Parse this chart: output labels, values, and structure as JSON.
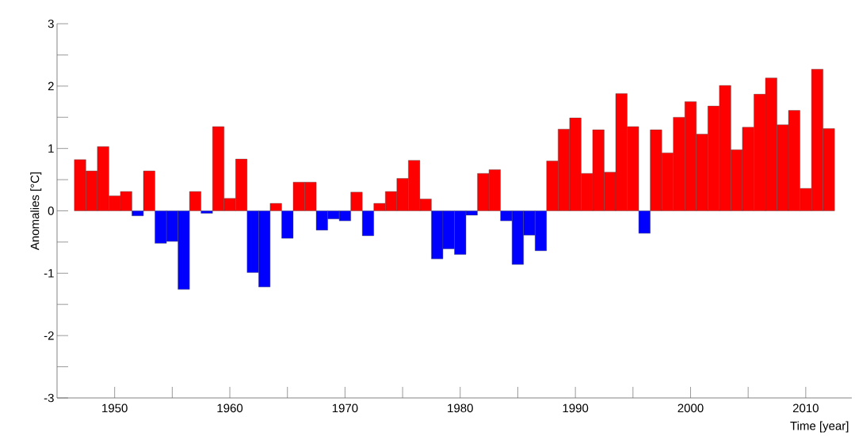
{
  "chart_data": {
    "type": "bar",
    "xlabel": "Time [year]",
    "ylabel": "Anomalies [°C]",
    "x": [
      1947,
      1948,
      1949,
      1950,
      1951,
      1952,
      1953,
      1954,
      1955,
      1956,
      1957,
      1958,
      1959,
      1960,
      1961,
      1962,
      1963,
      1964,
      1965,
      1966,
      1967,
      1968,
      1969,
      1970,
      1971,
      1972,
      1973,
      1974,
      1975,
      1976,
      1977,
      1978,
      1979,
      1980,
      1981,
      1982,
      1983,
      1984,
      1985,
      1986,
      1987,
      1988,
      1989,
      1990,
      1991,
      1992,
      1993,
      1994,
      1995,
      1996,
      1997,
      1998,
      1999,
      2000,
      2001,
      2002,
      2003,
      2004,
      2005,
      2006,
      2007,
      2008,
      2009,
      2010,
      2011,
      2012
    ],
    "values": [
      0.82,
      0.64,
      1.03,
      0.24,
      0.31,
      -0.08,
      0.64,
      -0.52,
      -0.49,
      -1.26,
      0.31,
      -0.04,
      1.35,
      0.2,
      0.83,
      -0.99,
      -1.22,
      0.12,
      -0.44,
      0.46,
      0.46,
      -0.31,
      -0.13,
      -0.16,
      0.3,
      -0.4,
      0.12,
      0.31,
      0.52,
      0.81,
      0.19,
      -0.77,
      -0.61,
      -0.7,
      -0.07,
      0.6,
      0.66,
      -0.16,
      -0.86,
      -0.39,
      -0.64,
      0.8,
      1.31,
      1.49,
      0.6,
      1.3,
      0.62,
      1.88,
      1.35,
      -0.36,
      1.3,
      0.93,
      1.5,
      1.75,
      1.23,
      1.68,
      2.01,
      0.98,
      1.34,
      1.87,
      2.13,
      1.38,
      1.61,
      0.36,
      2.27,
      1.32
    ],
    "colors": [
      "#ff0000",
      "#ff0000",
      "#ff0000",
      "#ff0000",
      "#ff0000",
      "#0000ff",
      "#ff0000",
      "#0000ff",
      "#0000ff",
      "#0000ff",
      "#ff0000",
      "#0000ff",
      "#ff0000",
      "#ff0000",
      "#ff0000",
      "#0000ff",
      "#0000ff",
      "#ff0000",
      "#0000ff",
      "#ff0000",
      "#ff0000",
      "#0000ff",
      "#0000ff",
      "#0000ff",
      "#ff0000",
      "#0000ff",
      "#ff0000",
      "#ff0000",
      "#ff0000",
      "#ff0000",
      "#ff0000",
      "#0000ff",
      "#0000ff",
      "#0000ff",
      "#0000ff",
      "#ff0000",
      "#ff0000",
      "#0000ff",
      "#0000ff",
      "#0000ff",
      "#0000ff",
      "#ff0000",
      "#ff0000",
      "#ff0000",
      "#ff0000",
      "#ff0000",
      "#ff0000",
      "#ff0000",
      "#ff0000",
      "#0000ff",
      "#ff0000",
      "#ff0000",
      "#ff0000",
      "#ff0000",
      "#ff0000",
      "#ff0000",
      "#ff0000",
      "#ff0000",
      "#ff0000",
      "#ff0000",
      "#ff0000",
      "#ff0000",
      "#ff0000",
      "#ff0000",
      "#ff0000",
      "#ff0000"
    ],
    "xlim": [
      1945,
      2014
    ],
    "xticks": [
      1950,
      {
        "value": 1955,
        "label": null
      },
      1960,
      {
        "value": 1965,
        "label": null
      },
      1970,
      {
        "value": 1975,
        "label": null
      },
      1980,
      {
        "value": 1985,
        "label": null
      },
      1990,
      {
        "value": 1995,
        "label": null
      },
      2000,
      {
        "value": 2005,
        "label": null
      },
      2010
    ],
    "ylim": [
      -3,
      3
    ],
    "yticks": [
      -3,
      {
        "value": -2.5,
        "label": null
      },
      -2,
      {
        "value": -1.5,
        "label": null
      },
      -1,
      {
        "value": -0.5,
        "label": null
      },
      0,
      {
        "value": 0.5,
        "label": null
      },
      1,
      {
        "value": 1.5,
        "label": null
      },
      2,
      {
        "value": 2.5,
        "label": null
      },
      3
    ],
    "grid": false
  }
}
